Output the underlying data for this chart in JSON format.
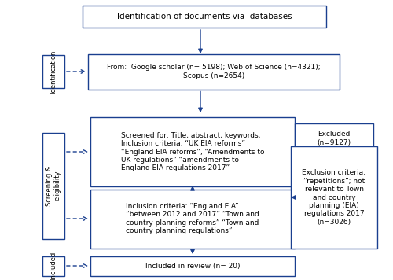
{
  "title_box": "Identification of documents via  databases",
  "box1_text": "From:  Google scholar (n= 5198); Web of Science (n=4321);\nScopus (n=2654)",
  "box2_text": "Screened for: Title, abstract, keywords;\nInclusion criteria: “UK EIA reforms”\n“England EIA reforms”, “Amendments to\nUK regulations” “amendments to\nEngland EIA regulations 2017”",
  "box3_text": "Inclusion criteria: “England EIA”\n“between 2012 and 2017” “Town and\ncountry planning reforms” “Town and\ncountry planning regulations”",
  "box4_text": "Included in review (n= 20)",
  "excluded_box_text": "Excluded\n(n=9127)",
  "exclusion_box_text": "Exclusion criteria:\n“repetitions”; not\nrelevant to Town\nand country\nplanning (EIA)\nregulations 2017\n(n=3026)",
  "side_label1": "Identification",
  "side_label2": "Screening &\neligibility",
  "side_label3": "Included",
  "border_color": "#1a3f8f",
  "text_color": "#000000",
  "arrow_color": "#1a3f8f",
  "fontsize": 6.5,
  "title_fontsize": 7.5
}
